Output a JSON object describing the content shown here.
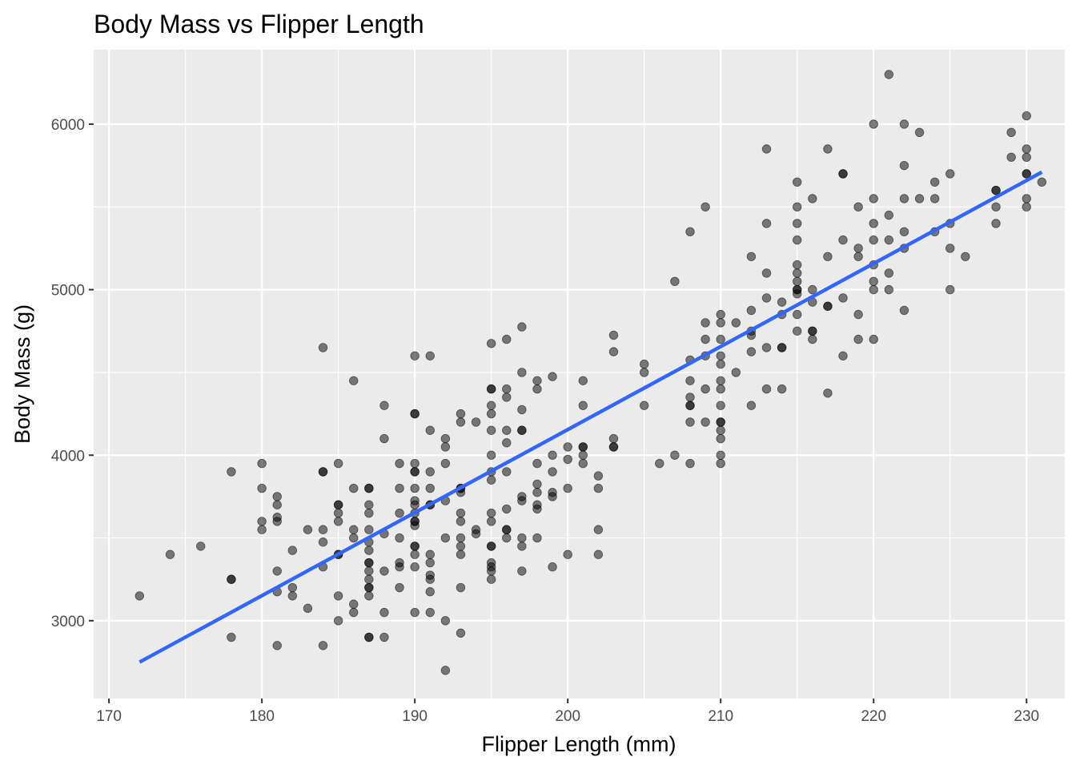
{
  "chart_data": {
    "type": "scatter",
    "title": "Body Mass vs Flipper Length",
    "xlabel": "Flipper Length (mm)",
    "ylabel": "Body Mass (g)",
    "xlim": [
      169,
      232.5
    ],
    "ylim": [
      2530,
      6450
    ],
    "x_ticks": [
      170,
      180,
      190,
      200,
      210,
      220,
      230
    ],
    "y_ticks": [
      3000,
      4000,
      5000,
      6000
    ],
    "x_tick_labels": [
      "170",
      "180",
      "190",
      "200",
      "210",
      "220",
      "230"
    ],
    "y_tick_labels": [
      "3000",
      "4000",
      "5000",
      "6000"
    ],
    "grid": true,
    "legend": "none",
    "colors": {
      "panel_background": "#EBEBEB",
      "grid": "#FFFFFF",
      "points": "#000000",
      "trend_line": "#3366FF"
    },
    "trend_line": {
      "type": "linear",
      "x": [
        172,
        231
      ],
      "y": [
        2750,
        5710
      ]
    },
    "points": [
      {
        "x": 172,
        "y": 3150
      },
      {
        "x": 174,
        "y": 3400
      },
      {
        "x": 176,
        "y": 3450
      },
      {
        "x": 178,
        "y": 3900
      },
      {
        "x": 178,
        "y": 3250
      },
      {
        "x": 178,
        "y": 3250
      },
      {
        "x": 178,
        "y": 2900
      },
      {
        "x": 180,
        "y": 3950
      },
      {
        "x": 180,
        "y": 3800
      },
      {
        "x": 180,
        "y": 3600
      },
      {
        "x": 180,
        "y": 3550
      },
      {
        "x": 181,
        "y": 3750
      },
      {
        "x": 181,
        "y": 3700
      },
      {
        "x": 181,
        "y": 3625
      },
      {
        "x": 181,
        "y": 3600
      },
      {
        "x": 181,
        "y": 3300
      },
      {
        "x": 181,
        "y": 3175
      },
      {
        "x": 181,
        "y": 2850
      },
      {
        "x": 182,
        "y": 3425
      },
      {
        "x": 182,
        "y": 3200
      },
      {
        "x": 182,
        "y": 3150
      },
      {
        "x": 183,
        "y": 3550
      },
      {
        "x": 183,
        "y": 3075
      },
      {
        "x": 184,
        "y": 4650
      },
      {
        "x": 184,
        "y": 3900
      },
      {
        "x": 184,
        "y": 3900
      },
      {
        "x": 184,
        "y": 3550
      },
      {
        "x": 184,
        "y": 3475
      },
      {
        "x": 184,
        "y": 3325
      },
      {
        "x": 184,
        "y": 2850
      },
      {
        "x": 185,
        "y": 3950
      },
      {
        "x": 185,
        "y": 3700
      },
      {
        "x": 185,
        "y": 3700
      },
      {
        "x": 185,
        "y": 3650
      },
      {
        "x": 185,
        "y": 3600
      },
      {
        "x": 185,
        "y": 3400
      },
      {
        "x": 185,
        "y": 3400
      },
      {
        "x": 185,
        "y": 3150
      },
      {
        "x": 185,
        "y": 3000
      },
      {
        "x": 186,
        "y": 4450
      },
      {
        "x": 186,
        "y": 3800
      },
      {
        "x": 186,
        "y": 3550
      },
      {
        "x": 186,
        "y": 3500
      },
      {
        "x": 186,
        "y": 3100
      },
      {
        "x": 186,
        "y": 3050
      },
      {
        "x": 187,
        "y": 3800
      },
      {
        "x": 187,
        "y": 3800
      },
      {
        "x": 187,
        "y": 3700
      },
      {
        "x": 187,
        "y": 3650
      },
      {
        "x": 187,
        "y": 3550
      },
      {
        "x": 187,
        "y": 3475
      },
      {
        "x": 187,
        "y": 3425
      },
      {
        "x": 187,
        "y": 3350
      },
      {
        "x": 187,
        "y": 3350
      },
      {
        "x": 187,
        "y": 3300
      },
      {
        "x": 187,
        "y": 3250
      },
      {
        "x": 187,
        "y": 3200
      },
      {
        "x": 187,
        "y": 3200
      },
      {
        "x": 187,
        "y": 3150
      },
      {
        "x": 187,
        "y": 2900
      },
      {
        "x": 187,
        "y": 2900
      },
      {
        "x": 188,
        "y": 4300
      },
      {
        "x": 188,
        "y": 4100
      },
      {
        "x": 188,
        "y": 3525
      },
      {
        "x": 188,
        "y": 3300
      },
      {
        "x": 188,
        "y": 3050
      },
      {
        "x": 188,
        "y": 2900
      },
      {
        "x": 189,
        "y": 3950
      },
      {
        "x": 189,
        "y": 3800
      },
      {
        "x": 189,
        "y": 3650
      },
      {
        "x": 189,
        "y": 3500
      },
      {
        "x": 189,
        "y": 3350
      },
      {
        "x": 189,
        "y": 3325
      },
      {
        "x": 189,
        "y": 3200
      },
      {
        "x": 190,
        "y": 4600
      },
      {
        "x": 190,
        "y": 4250
      },
      {
        "x": 190,
        "y": 4250
      },
      {
        "x": 190,
        "y": 3950
      },
      {
        "x": 190,
        "y": 3900
      },
      {
        "x": 190,
        "y": 3900
      },
      {
        "x": 190,
        "y": 3800
      },
      {
        "x": 190,
        "y": 3725
      },
      {
        "x": 190,
        "y": 3700
      },
      {
        "x": 190,
        "y": 3650
      },
      {
        "x": 190,
        "y": 3600
      },
      {
        "x": 190,
        "y": 3600
      },
      {
        "x": 190,
        "y": 3575
      },
      {
        "x": 190,
        "y": 3450
      },
      {
        "x": 190,
        "y": 3450
      },
      {
        "x": 190,
        "y": 3400
      },
      {
        "x": 190,
        "y": 3325
      },
      {
        "x": 190,
        "y": 3050
      },
      {
        "x": 191,
        "y": 4600
      },
      {
        "x": 191,
        "y": 4150
      },
      {
        "x": 191,
        "y": 3900
      },
      {
        "x": 191,
        "y": 3800
      },
      {
        "x": 191,
        "y": 3700
      },
      {
        "x": 191,
        "y": 3700
      },
      {
        "x": 191,
        "y": 3400
      },
      {
        "x": 191,
        "y": 3350
      },
      {
        "x": 191,
        "y": 3275
      },
      {
        "x": 191,
        "y": 3250
      },
      {
        "x": 191,
        "y": 3175
      },
      {
        "x": 191,
        "y": 3050
      },
      {
        "x": 192,
        "y": 4100
      },
      {
        "x": 192,
        "y": 4050
      },
      {
        "x": 192,
        "y": 3950
      },
      {
        "x": 192,
        "y": 3725
      },
      {
        "x": 192,
        "y": 3500
      },
      {
        "x": 192,
        "y": 3000
      },
      {
        "x": 192,
        "y": 2700
      },
      {
        "x": 193,
        "y": 4250
      },
      {
        "x": 193,
        "y": 4200
      },
      {
        "x": 193,
        "y": 3800
      },
      {
        "x": 193,
        "y": 3800
      },
      {
        "x": 193,
        "y": 3775
      },
      {
        "x": 193,
        "y": 3650
      },
      {
        "x": 193,
        "y": 3600
      },
      {
        "x": 193,
        "y": 3500
      },
      {
        "x": 193,
        "y": 3450
      },
      {
        "x": 193,
        "y": 3400
      },
      {
        "x": 193,
        "y": 3200
      },
      {
        "x": 193,
        "y": 2925
      },
      {
        "x": 194,
        "y": 4200
      },
      {
        "x": 194,
        "y": 3550
      },
      {
        "x": 194,
        "y": 3525
      },
      {
        "x": 195,
        "y": 4675
      },
      {
        "x": 195,
        "y": 4400
      },
      {
        "x": 195,
        "y": 4400
      },
      {
        "x": 195,
        "y": 4300
      },
      {
        "x": 195,
        "y": 4250
      },
      {
        "x": 195,
        "y": 4150
      },
      {
        "x": 195,
        "y": 4000
      },
      {
        "x": 195,
        "y": 3900
      },
      {
        "x": 195,
        "y": 3850
      },
      {
        "x": 195,
        "y": 3650
      },
      {
        "x": 195,
        "y": 3600
      },
      {
        "x": 195,
        "y": 3450
      },
      {
        "x": 195,
        "y": 3450
      },
      {
        "x": 195,
        "y": 3350
      },
      {
        "x": 195,
        "y": 3325
      },
      {
        "x": 195,
        "y": 3300
      },
      {
        "x": 195,
        "y": 3250
      },
      {
        "x": 196,
        "y": 4700
      },
      {
        "x": 196,
        "y": 4400
      },
      {
        "x": 196,
        "y": 4350
      },
      {
        "x": 196,
        "y": 4150
      },
      {
        "x": 196,
        "y": 4075
      },
      {
        "x": 196,
        "y": 3900
      },
      {
        "x": 196,
        "y": 3675
      },
      {
        "x": 196,
        "y": 3550
      },
      {
        "x": 196,
        "y": 3550
      },
      {
        "x": 196,
        "y": 3500
      },
      {
        "x": 197,
        "y": 4775
      },
      {
        "x": 197,
        "y": 4500
      },
      {
        "x": 197,
        "y": 4275
      },
      {
        "x": 197,
        "y": 4150
      },
      {
        "x": 197,
        "y": 4150
      },
      {
        "x": 197,
        "y": 3750
      },
      {
        "x": 197,
        "y": 3725
      },
      {
        "x": 197,
        "y": 3500
      },
      {
        "x": 197,
        "y": 3450
      },
      {
        "x": 197,
        "y": 3300
      },
      {
        "x": 198,
        "y": 4450
      },
      {
        "x": 198,
        "y": 4400
      },
      {
        "x": 198,
        "y": 3950
      },
      {
        "x": 198,
        "y": 3825
      },
      {
        "x": 198,
        "y": 3775
      },
      {
        "x": 198,
        "y": 3700
      },
      {
        "x": 198,
        "y": 3675
      },
      {
        "x": 198,
        "y": 3500
      },
      {
        "x": 199,
        "y": 4475
      },
      {
        "x": 199,
        "y": 4000
      },
      {
        "x": 199,
        "y": 3900
      },
      {
        "x": 199,
        "y": 3775
      },
      {
        "x": 199,
        "y": 3750
      },
      {
        "x": 199,
        "y": 3325
      },
      {
        "x": 200,
        "y": 4050
      },
      {
        "x": 200,
        "y": 3975
      },
      {
        "x": 200,
        "y": 3800
      },
      {
        "x": 200,
        "y": 3400
      },
      {
        "x": 201,
        "y": 4450
      },
      {
        "x": 201,
        "y": 4300
      },
      {
        "x": 201,
        "y": 4050
      },
      {
        "x": 201,
        "y": 4050
      },
      {
        "x": 201,
        "y": 4000
      },
      {
        "x": 201,
        "y": 3950
      },
      {
        "x": 202,
        "y": 3875
      },
      {
        "x": 202,
        "y": 3800
      },
      {
        "x": 202,
        "y": 3550
      },
      {
        "x": 202,
        "y": 3400
      },
      {
        "x": 203,
        "y": 4725
      },
      {
        "x": 203,
        "y": 4625
      },
      {
        "x": 203,
        "y": 4100
      },
      {
        "x": 203,
        "y": 4050
      },
      {
        "x": 203,
        "y": 4050
      },
      {
        "x": 205,
        "y": 4550
      },
      {
        "x": 205,
        "y": 4500
      },
      {
        "x": 205,
        "y": 4300
      },
      {
        "x": 206,
        "y": 3950
      },
      {
        "x": 207,
        "y": 5050
      },
      {
        "x": 207,
        "y": 4000
      },
      {
        "x": 208,
        "y": 5350
      },
      {
        "x": 208,
        "y": 4575
      },
      {
        "x": 208,
        "y": 4450
      },
      {
        "x": 208,
        "y": 4350
      },
      {
        "x": 208,
        "y": 4300
      },
      {
        "x": 208,
        "y": 4300
      },
      {
        "x": 208,
        "y": 4200
      },
      {
        "x": 208,
        "y": 3950
      },
      {
        "x": 209,
        "y": 5500
      },
      {
        "x": 209,
        "y": 4800
      },
      {
        "x": 209,
        "y": 4700
      },
      {
        "x": 209,
        "y": 4600
      },
      {
        "x": 209,
        "y": 4400
      },
      {
        "x": 209,
        "y": 4200
      },
      {
        "x": 210,
        "y": 4850
      },
      {
        "x": 210,
        "y": 4800
      },
      {
        "x": 210,
        "y": 4700
      },
      {
        "x": 210,
        "y": 4600
      },
      {
        "x": 210,
        "y": 4550
      },
      {
        "x": 210,
        "y": 4450
      },
      {
        "x": 210,
        "y": 4400
      },
      {
        "x": 210,
        "y": 4300
      },
      {
        "x": 210,
        "y": 4200
      },
      {
        "x": 210,
        "y": 4200
      },
      {
        "x": 210,
        "y": 4150
      },
      {
        "x": 210,
        "y": 4100
      },
      {
        "x": 210,
        "y": 4000
      },
      {
        "x": 210,
        "y": 3950
      },
      {
        "x": 211,
        "y": 4800
      },
      {
        "x": 211,
        "y": 4500
      },
      {
        "x": 212,
        "y": 5200
      },
      {
        "x": 212,
        "y": 4875
      },
      {
        "x": 212,
        "y": 4750
      },
      {
        "x": 212,
        "y": 4725
      },
      {
        "x": 212,
        "y": 4625
      },
      {
        "x": 212,
        "y": 4300
      },
      {
        "x": 213,
        "y": 5850
      },
      {
        "x": 213,
        "y": 5400
      },
      {
        "x": 213,
        "y": 5100
      },
      {
        "x": 213,
        "y": 4950
      },
      {
        "x": 213,
        "y": 4650
      },
      {
        "x": 213,
        "y": 4400
      },
      {
        "x": 214,
        "y": 4925
      },
      {
        "x": 214,
        "y": 4850
      },
      {
        "x": 214,
        "y": 4650
      },
      {
        "x": 214,
        "y": 4650
      },
      {
        "x": 214,
        "y": 4400
      },
      {
        "x": 215,
        "y": 5650
      },
      {
        "x": 215,
        "y": 5500
      },
      {
        "x": 215,
        "y": 5400
      },
      {
        "x": 215,
        "y": 5300
      },
      {
        "x": 215,
        "y": 5150
      },
      {
        "x": 215,
        "y": 5100
      },
      {
        "x": 215,
        "y": 5050
      },
      {
        "x": 215,
        "y": 5000
      },
      {
        "x": 215,
        "y": 5000
      },
      {
        "x": 215,
        "y": 4975
      },
      {
        "x": 215,
        "y": 4850
      },
      {
        "x": 215,
        "y": 4750
      },
      {
        "x": 216,
        "y": 5550
      },
      {
        "x": 216,
        "y": 5000
      },
      {
        "x": 216,
        "y": 4925
      },
      {
        "x": 216,
        "y": 4750
      },
      {
        "x": 216,
        "y": 4750
      },
      {
        "x": 216,
        "y": 4700
      },
      {
        "x": 217,
        "y": 5850
      },
      {
        "x": 217,
        "y": 5200
      },
      {
        "x": 217,
        "y": 4900
      },
      {
        "x": 217,
        "y": 4900
      },
      {
        "x": 217,
        "y": 4375
      },
      {
        "x": 218,
        "y": 5700
      },
      {
        "x": 218,
        "y": 5700
      },
      {
        "x": 218,
        "y": 5300
      },
      {
        "x": 218,
        "y": 4950
      },
      {
        "x": 218,
        "y": 4600
      },
      {
        "x": 219,
        "y": 5500
      },
      {
        "x": 219,
        "y": 5250
      },
      {
        "x": 219,
        "y": 5200
      },
      {
        "x": 219,
        "y": 4850
      },
      {
        "x": 219,
        "y": 4700
      },
      {
        "x": 220,
        "y": 6000
      },
      {
        "x": 220,
        "y": 5550
      },
      {
        "x": 220,
        "y": 5400
      },
      {
        "x": 220,
        "y": 5300
      },
      {
        "x": 220,
        "y": 5150
      },
      {
        "x": 220,
        "y": 5050
      },
      {
        "x": 220,
        "y": 5000
      },
      {
        "x": 220,
        "y": 4700
      },
      {
        "x": 221,
        "y": 6300
      },
      {
        "x": 221,
        "y": 5450
      },
      {
        "x": 221,
        "y": 5300
      },
      {
        "x": 221,
        "y": 5100
      },
      {
        "x": 221,
        "y": 5000
      },
      {
        "x": 222,
        "y": 6000
      },
      {
        "x": 222,
        "y": 5750
      },
      {
        "x": 222,
        "y": 5550
      },
      {
        "x": 222,
        "y": 5350
      },
      {
        "x": 222,
        "y": 5250
      },
      {
        "x": 222,
        "y": 4875
      },
      {
        "x": 223,
        "y": 5950
      },
      {
        "x": 223,
        "y": 5550
      },
      {
        "x": 224,
        "y": 5650
      },
      {
        "x": 224,
        "y": 5550
      },
      {
        "x": 224,
        "y": 5350
      },
      {
        "x": 225,
        "y": 5700
      },
      {
        "x": 225,
        "y": 5400
      },
      {
        "x": 225,
        "y": 5250
      },
      {
        "x": 225,
        "y": 5000
      },
      {
        "x": 226,
        "y": 5200
      },
      {
        "x": 228,
        "y": 5600
      },
      {
        "x": 228,
        "y": 5600
      },
      {
        "x": 228,
        "y": 5500
      },
      {
        "x": 228,
        "y": 5400
      },
      {
        "x": 229,
        "y": 5950
      },
      {
        "x": 229,
        "y": 5800
      },
      {
        "x": 230,
        "y": 6050
      },
      {
        "x": 230,
        "y": 5850
      },
      {
        "x": 230,
        "y": 5800
      },
      {
        "x": 230,
        "y": 5700
      },
      {
        "x": 230,
        "y": 5700
      },
      {
        "x": 230,
        "y": 5550
      },
      {
        "x": 230,
        "y": 5500
      },
      {
        "x": 231,
        "y": 5650
      }
    ]
  }
}
